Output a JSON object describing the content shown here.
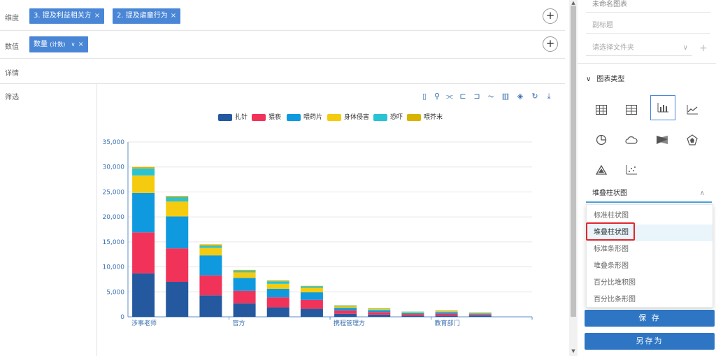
{
  "dimension": {
    "label": "维度",
    "chips": [
      "3. 提及利益相关方",
      "2. 提及虐童行为"
    ],
    "remove_glyph": "×"
  },
  "measure": {
    "label": "数值",
    "chip_main": "数量",
    "chip_sub": "(计数)",
    "chevron": "∨",
    "remove_glyph": "×"
  },
  "detail": {
    "label": "详情"
  },
  "filter": {
    "label": "筛选"
  },
  "plus_glyph": "+",
  "legend": [
    {
      "name": "扎针",
      "color": "#2459a0"
    },
    {
      "name": "猥亵",
      "color": "#f1335a"
    },
    {
      "name": "喂药片",
      "color": "#0f9ae0"
    },
    {
      "name": "身体侵害",
      "color": "#f5cb10"
    },
    {
      "name": "恐吓",
      "color": "#29c3d5"
    },
    {
      "name": "喂芥末",
      "color": "#d8b300"
    }
  ],
  "chart_data": {
    "type": "bar",
    "stacked": true,
    "x_tick_labels": [
      "涉事老师",
      "官方",
      "携程管理方",
      "教育部门"
    ],
    "categories_count": 12,
    "ylim": [
      0,
      35000
    ],
    "y_ticks": [
      "0",
      "5,000",
      "10,000",
      "15,000",
      "20,000",
      "25,000",
      "30,000",
      "35,000"
    ],
    "grid": true,
    "legend_position": "top",
    "series": [
      {
        "name": "扎针",
        "values": [
          8700,
          7000,
          4300,
          2700,
          1900,
          1600,
          600,
          450,
          250,
          250,
          200,
          0
        ]
      },
      {
        "name": "猥亵",
        "values": [
          8200,
          6700,
          4000,
          2500,
          2000,
          1800,
          700,
          500,
          300,
          400,
          250,
          0
        ]
      },
      {
        "name": "喂药片",
        "values": [
          7900,
          6400,
          4000,
          2600,
          1700,
          1500,
          500,
          400,
          250,
          300,
          200,
          0
        ]
      },
      {
        "name": "身体侵害",
        "values": [
          3500,
          3000,
          1500,
          1100,
          1000,
          900,
          300,
          250,
          150,
          200,
          150,
          0
        ]
      },
      {
        "name": "恐吓",
        "values": [
          1400,
          850,
          400,
          300,
          500,
          300,
          150,
          100,
          80,
          100,
          80,
          0
        ]
      },
      {
        "name": "喂芥末",
        "values": [
          300,
          250,
          300,
          200,
          200,
          100,
          50,
          50,
          20,
          50,
          20,
          0
        ]
      }
    ]
  },
  "right_panel": {
    "title_field": "未命名图表",
    "subtitle_placeholder": "副标题",
    "folder_placeholder": "请选择文件夹",
    "folder_chevron": "∨",
    "folder_add": "+",
    "chart_type_header": "图表类型",
    "chart_type_chevron": "∨",
    "selected_type": "堆叠柱状图",
    "select_arrow": "∧",
    "dropdown_options": [
      "标准柱状图",
      "堆叠柱状图",
      "标准条形图",
      "堆叠条形图",
      "百分比堆积图",
      "百分比条形图"
    ],
    "save_label": "保 存",
    "save_as_label": "另存为"
  }
}
